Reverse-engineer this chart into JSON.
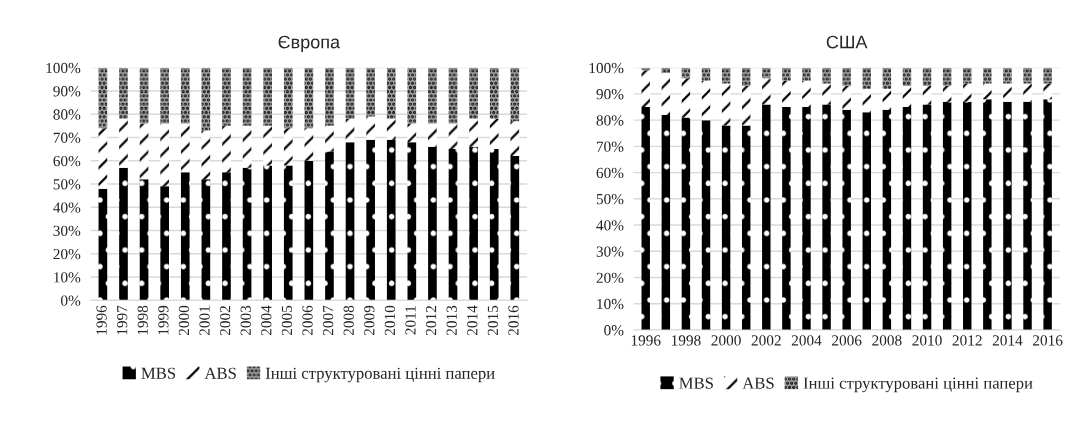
{
  "chart_data": [
    {
      "type": "bar",
      "stacked": true,
      "title": "Європа",
      "categories": [
        "1996",
        "1997",
        "1998",
        "1999",
        "2000",
        "2001",
        "2002",
        "2003",
        "2004",
        "2005",
        "2006",
        "2007",
        "2008",
        "2009",
        "2010",
        "2011",
        "2012",
        "2013",
        "2014",
        "2015",
        "2016"
      ],
      "series": [
        {
          "name": "MBS",
          "color": "#000000",
          "values": [
            48,
            57,
            52,
            49,
            55,
            52,
            55,
            57,
            58,
            58,
            60,
            64,
            68,
            69,
            69,
            68,
            66,
            65,
            66,
            65,
            62
          ]
        },
        {
          "name": "ABS",
          "color": "#ffffff",
          "values": [
            26,
            21,
            24,
            27,
            21,
            21,
            20,
            18,
            17,
            16,
            14,
            11,
            10,
            10,
            9,
            8,
            10,
            11,
            12,
            13,
            15
          ]
        },
        {
          "name": "Інші структуровані цінні папери",
          "color": "#a6a6a6",
          "values": [
            26,
            22,
            24,
            24,
            24,
            27,
            25,
            25,
            25,
            26,
            26,
            25,
            22,
            21,
            22,
            24,
            24,
            24,
            22,
            22,
            23
          ]
        }
      ],
      "ylim": [
        0,
        100
      ],
      "yticks": [
        {
          "value": 0,
          "label": "0%"
        },
        {
          "value": 10,
          "label": "10%"
        },
        {
          "value": 20,
          "label": "20%"
        },
        {
          "value": 30,
          "label": "30%"
        },
        {
          "value": 40,
          "label": "40%"
        },
        {
          "value": 50,
          "label": "50%"
        },
        {
          "value": 60,
          "label": "60%"
        },
        {
          "value": 70,
          "label": "70%"
        },
        {
          "value": 80,
          "label": "80%"
        },
        {
          "value": 90,
          "label": "90%"
        },
        {
          "value": 100,
          "label": "100%"
        }
      ],
      "grid": "y",
      "legend": "bottom"
    },
    {
      "type": "bar",
      "stacked": true,
      "title": "США",
      "categories": [
        "1996",
        null,
        "1998",
        null,
        "2000",
        null,
        "2002",
        null,
        "2004",
        null,
        "2006",
        null,
        "2008",
        null,
        "2010",
        null,
        "2012",
        null,
        "2014",
        null,
        "2016"
      ],
      "series": [
        {
          "name": "MBS",
          "color": "#000000",
          "values": [
            85,
            82,
            81,
            80,
            78,
            78,
            86,
            85,
            85,
            86,
            84,
            83,
            84,
            85,
            86,
            87,
            87,
            88,
            87,
            87,
            88
          ]
        },
        {
          "name": "ABS",
          "color": "#ffffff",
          "values": [
            14,
            16,
            15,
            15,
            16,
            15,
            10,
            10,
            10,
            8,
            9,
            9,
            8,
            8,
            7,
            6,
            7,
            6,
            7,
            7,
            6
          ]
        },
        {
          "name": "Інші структуровані цінні папери",
          "color": "#a6a6a6",
          "values": [
            1,
            2,
            4,
            5,
            6,
            7,
            4,
            5,
            5,
            6,
            7,
            8,
            8,
            7,
            7,
            7,
            6,
            6,
            6,
            6,
            6
          ]
        }
      ],
      "ylim": [
        0,
        100
      ],
      "yticks": [
        {
          "value": 0,
          "label": "0%"
        },
        {
          "value": 10,
          "label": "10%"
        },
        {
          "value": 20,
          "label": "20%"
        },
        {
          "value": 30,
          "label": "30%"
        },
        {
          "value": 40,
          "label": "40%"
        },
        {
          "value": 50,
          "label": "50%"
        },
        {
          "value": 60,
          "label": "60%"
        },
        {
          "value": 70,
          "label": "70%"
        },
        {
          "value": 80,
          "label": "80%"
        },
        {
          "value": 90,
          "label": "90%"
        },
        {
          "value": 100,
          "label": "100%"
        }
      ],
      "grid": "y",
      "legend": "bottom"
    }
  ]
}
